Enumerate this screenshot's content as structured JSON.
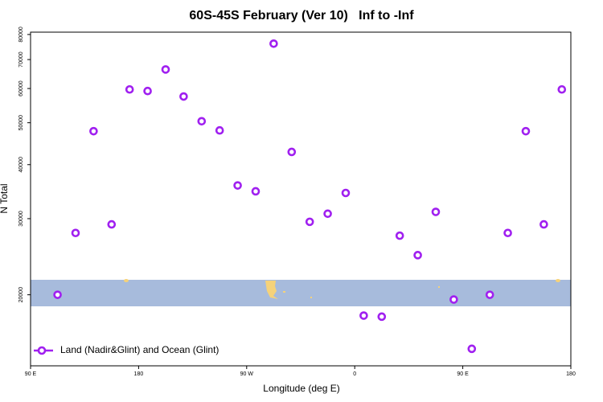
{
  "chart_data": {
    "type": "scatter",
    "title": "60S-45S February (Ver 10)   Inf to -Inf",
    "xlabel": "Longitude (deg E)",
    "ylabel": "N Total",
    "series": [
      {
        "name": "Land (Nadir&Glint) and Ocean (Glint)",
        "color": "#a020f0",
        "x": [
          112.5,
          127.5,
          142.5,
          157.5,
          172.5,
          187.5,
          202.5,
          217.5,
          232.5,
          247.5,
          262.5,
          277.5,
          292.5,
          307.5,
          322.5,
          337.5,
          352.5,
          367.5,
          382.5,
          397.5,
          412.5,
          427.5,
          442.5,
          457.5,
          472.5,
          487.5,
          502.5,
          517.5,
          532.5
        ],
        "values": [
          20000,
          27800,
          47800,
          29100,
          59700,
          59200,
          66400,
          57500,
          50400,
          48000,
          35800,
          34700,
          76200,
          42800,
          29500,
          30800,
          34400,
          17900,
          17800,
          27400,
          24700,
          31100,
          19500,
          15000,
          20000,
          27800,
          47800,
          29100,
          59700
        ]
      }
    ],
    "xlim": [
      90,
      540
    ],
    "xticks": [
      {
        "value": 90,
        "label": "90 E"
      },
      {
        "value": 180,
        "label": "180"
      },
      {
        "value": 270,
        "label": "90 W"
      },
      {
        "value": 360,
        "label": "0"
      },
      {
        "value": 450,
        "label": "90 E"
      },
      {
        "value": 540,
        "label": "180"
      }
    ],
    "ylim": [
      13700,
      81000
    ],
    "yticks": [
      20000,
      30000,
      40000,
      50000,
      60000,
      70000,
      80000
    ],
    "ylog": true,
    "grid": false,
    "legend": "lower left"
  }
}
